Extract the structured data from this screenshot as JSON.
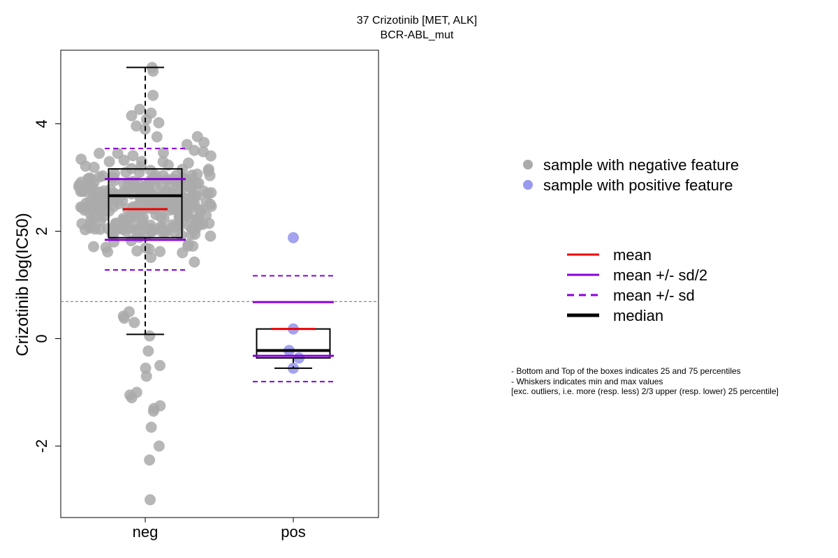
{
  "chart_data": {
    "type": "box",
    "title": "37 Crizotinib [MET, ALK]",
    "subtitle": "BCR-ABL_mut",
    "ylabel": "Crizotinib log(IC50)",
    "xlabel": "",
    "categories": [
      "neg",
      "pos"
    ],
    "ylim": [
      -3.3,
      5.4
    ],
    "yticks": [
      -2,
      0,
      2,
      4
    ],
    "reference_line": 0.69,
    "groups": [
      {
        "key": "neg",
        "point_color": "#aaaaaa",
        "n": 330,
        "box": {
          "q1": 1.88,
          "median": 2.66,
          "q3": 3.16
        },
        "whiskers": {
          "low": 0.08,
          "high": 5.05
        },
        "mean": 2.41,
        "mean_sd_half": [
          1.84,
          2.97
        ],
        "mean_sd": [
          1.28,
          3.54
        ],
        "points": [
          4.98,
          5.05,
          4.53,
          4.27,
          4.2,
          4.15,
          4.08,
          4.02,
          3.96,
          3.9,
          -3.0,
          -2.26,
          -2.0,
          -1.65,
          -1.35,
          -1.25,
          -1.3,
          -1.1,
          -1.05,
          -1.0,
          -0.7,
          -0.55,
          -0.5,
          -0.23,
          0.05,
          0.3,
          0.38,
          0.42,
          0.5
        ]
      },
      {
        "key": "pos",
        "point_color": "#9999ee",
        "n": 5,
        "box": {
          "q1": -0.36,
          "median": -0.22,
          "q3": 0.18
        },
        "whiskers": {
          "low": -0.55,
          "high": 0.18
        },
        "mean": 0.18,
        "mean_sd_half": [
          -0.32,
          0.68
        ],
        "mean_sd": [
          -0.8,
          1.17
        ],
        "points": [
          1.88,
          0.18,
          -0.22,
          -0.36,
          -0.55
        ]
      }
    ],
    "legend_points": [
      {
        "label": "sample with negative feature",
        "color": "#aaaaaa"
      },
      {
        "label": "sample with positive feature",
        "color": "#9999ee"
      }
    ],
    "legend_lines": [
      {
        "label": "mean",
        "color": "#ee0000",
        "style": "solid"
      },
      {
        "label": "mean +/- sd/2",
        "color": "#8800dd",
        "style": "solid"
      },
      {
        "label": "mean +/- sd",
        "color": "#8800dd",
        "style": "dashed"
      },
      {
        "label": "median",
        "color": "#000000",
        "style": "solid-thick"
      }
    ],
    "notes": [
      "- Bottom and Top of the boxes indicates 25 and 75 percentiles",
      "- Whiskers indicates min and max values",
      "[exc. outliers, i.e. more (resp. less) 2/3 upper (resp. lower) 25 percentile]"
    ]
  }
}
